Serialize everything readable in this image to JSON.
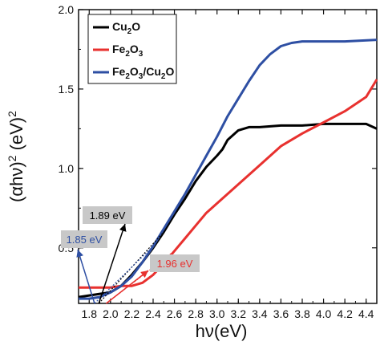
{
  "chart_data": {
    "type": "line",
    "xlabel": "hν(eV)",
    "ylabel_main": "(αhν)",
    "ylabel_exp1": "2",
    "ylabel_unit": " (eV)",
    "ylabel_exp2": "2",
    "xlim": [
      1.7,
      4.5
    ],
    "ylim": [
      0.15,
      2.0
    ],
    "xticks": [
      "1.8",
      "2.0",
      "2.2",
      "2.4",
      "2.6",
      "2.8",
      "3.0",
      "3.2",
      "3.4",
      "3.6",
      "3.8",
      "4.0",
      "4.2",
      "4.4"
    ],
    "yticks": [
      "0.5",
      "1.0",
      "1.5",
      "2.0"
    ],
    "grid": false,
    "legend_position": "top-left",
    "series": [
      {
        "name_parts": [
          [
            "Cu",
            false
          ],
          [
            "2",
            true
          ],
          [
            "O",
            false
          ]
        ],
        "color": "#000000",
        "x": [
          1.7,
          1.8,
          1.9,
          2.0,
          2.05,
          2.1,
          2.2,
          2.3,
          2.4,
          2.5,
          2.6,
          2.7,
          2.8,
          2.9,
          3.0,
          3.05,
          3.1,
          3.2,
          3.3,
          3.4,
          3.6,
          3.8,
          4.0,
          4.2,
          4.4,
          4.5
        ],
        "y": [
          0.19,
          0.2,
          0.21,
          0.22,
          0.24,
          0.26,
          0.33,
          0.41,
          0.5,
          0.6,
          0.71,
          0.81,
          0.92,
          1.01,
          1.08,
          1.12,
          1.18,
          1.24,
          1.26,
          1.26,
          1.27,
          1.27,
          1.28,
          1.28,
          1.28,
          1.25
        ]
      },
      {
        "name_parts": [
          [
            "Fe",
            false
          ],
          [
            "2",
            true
          ],
          [
            "O",
            false
          ],
          [
            "3",
            true
          ]
        ],
        "color": "#e8312f",
        "x": [
          1.7,
          1.8,
          2.0,
          2.1,
          2.2,
          2.3,
          2.4,
          2.5,
          2.6,
          2.7,
          2.8,
          2.9,
          3.0,
          3.2,
          3.4,
          3.6,
          3.8,
          4.0,
          4.2,
          4.4,
          4.5
        ],
        "y": [
          0.25,
          0.25,
          0.25,
          0.26,
          0.26,
          0.28,
          0.33,
          0.4,
          0.48,
          0.56,
          0.64,
          0.72,
          0.78,
          0.9,
          1.02,
          1.14,
          1.22,
          1.29,
          1.36,
          1.45,
          1.56
        ]
      },
      {
        "name_parts": [
          [
            "Fe",
            false
          ],
          [
            "2",
            true
          ],
          [
            "O",
            false
          ],
          [
            "3",
            true
          ],
          [
            "/Cu",
            false
          ],
          [
            "2",
            true
          ],
          [
            "O",
            false
          ]
        ],
        "color": "#2e4fa3",
        "x": [
          1.7,
          1.8,
          1.9,
          2.0,
          2.1,
          2.2,
          2.3,
          2.4,
          2.5,
          2.6,
          2.7,
          2.8,
          2.9,
          3.0,
          3.1,
          3.2,
          3.3,
          3.4,
          3.5,
          3.6,
          3.7,
          3.8,
          4.0,
          4.2,
          4.5
        ],
        "y": [
          0.18,
          0.18,
          0.19,
          0.22,
          0.26,
          0.32,
          0.41,
          0.51,
          0.62,
          0.73,
          0.84,
          0.96,
          1.08,
          1.2,
          1.33,
          1.44,
          1.55,
          1.65,
          1.72,
          1.77,
          1.79,
          1.8,
          1.8,
          1.8,
          1.81
        ]
      }
    ],
    "annotations": [
      {
        "text": "1.89 eV",
        "color": "#000000",
        "box_color": "#c8c8c8",
        "x_intercept": 1.89
      },
      {
        "text": "1.85 eV",
        "color": "#2e4fa3",
        "box_color": "#c8c8c8",
        "x_intercept": 1.85
      },
      {
        "text": "1.96 eV",
        "color": "#e8312f",
        "box_color": "#c8c8c8",
        "x_intercept": 1.96
      }
    ]
  }
}
